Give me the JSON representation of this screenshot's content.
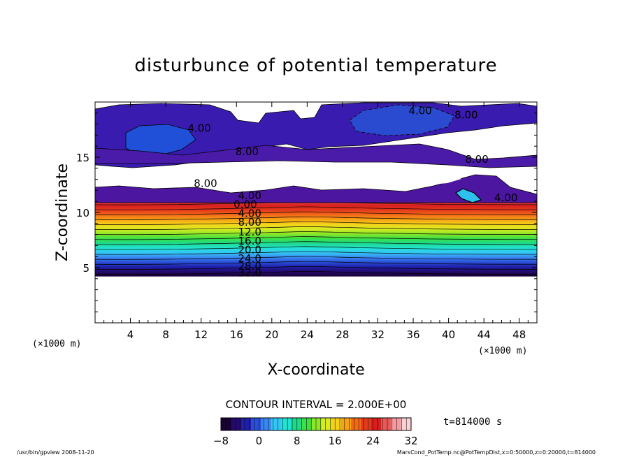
{
  "chart_data": {
    "type": "heatmap",
    "title": "disturbunce of potential temperature",
    "xlabel": "X-coordinate",
    "ylabel": "Z-coordinate",
    "x_unit": "(×1000 m)",
    "xlim": [
      0,
      50
    ],
    "ylim": [
      0,
      20
    ],
    "x_ticks": [
      4,
      8,
      12,
      16,
      20,
      24,
      28,
      32,
      36,
      40,
      44,
      48
    ],
    "y_ticks": [
      5,
      10,
      15
    ],
    "contour_labels": [
      {
        "text": "4.00",
        "x": 11.8,
        "z": 17.3
      },
      {
        "text": "8.00",
        "x": 17.2,
        "z": 15.2
      },
      {
        "text": "8.00",
        "x": 12.5,
        "z": 12.3
      },
      {
        "text": "4.00",
        "x": 36.8,
        "z": 18.9
      },
      {
        "text": "8.00",
        "x": 42.0,
        "z": 18.5
      },
      {
        "text": "8.00",
        "x": 43.2,
        "z": 14.5
      },
      {
        "text": "4.00",
        "x": 46.5,
        "z": 11.0
      },
      {
        "text": "4.00",
        "x": 17.5,
        "z": 11.2
      },
      {
        "text": "0.00",
        "x": 17.0,
        "z": 10.4
      },
      {
        "text": "4.00",
        "x": 17.5,
        "z": 9.6
      },
      {
        "text": "8.00",
        "x": 17.5,
        "z": 8.8
      },
      {
        "text": "12.0",
        "x": 17.5,
        "z": 7.9
      },
      {
        "text": "16.0",
        "x": 17.5,
        "z": 7.1
      },
      {
        "text": "20.0",
        "x": 17.5,
        "z": 6.3
      },
      {
        "text": "24.0",
        "x": 17.5,
        "z": 5.5
      },
      {
        "text": "28.0",
        "x": 17.5,
        "z": 4.8
      },
      {
        "text": "32.0",
        "x": 17.5,
        "z": 4.2
      }
    ],
    "contour_interval_label": "CONTOUR INTERVAL = 2.000E+00",
    "time_label": "t=814000 s",
    "colorbar": {
      "min": -8,
      "max": 32,
      "ticks": [
        "−8",
        "0",
        "8",
        "16",
        "24",
        "32"
      ],
      "colors": [
        "#1a0033",
        "#240a6b",
        "#1f1fa8",
        "#2a4fd6",
        "#3a86f0",
        "#33c6f5",
        "#22e2d2",
        "#1ed98a",
        "#3ce046",
        "#8ee628",
        "#d8ec22",
        "#f5d21a",
        "#f7a116",
        "#f26a18",
        "#e43a1c",
        "#d81e1e",
        "#e85a5a",
        "#f49aa0",
        "#fbd2d6"
      ]
    }
  },
  "footer": {
    "left": "/usr/bin/gpview   2008-11-20",
    "right": "MarsCond_PotTemp.nc@PotTempDist,x=0:50000,z=0:20000,t=814000"
  }
}
